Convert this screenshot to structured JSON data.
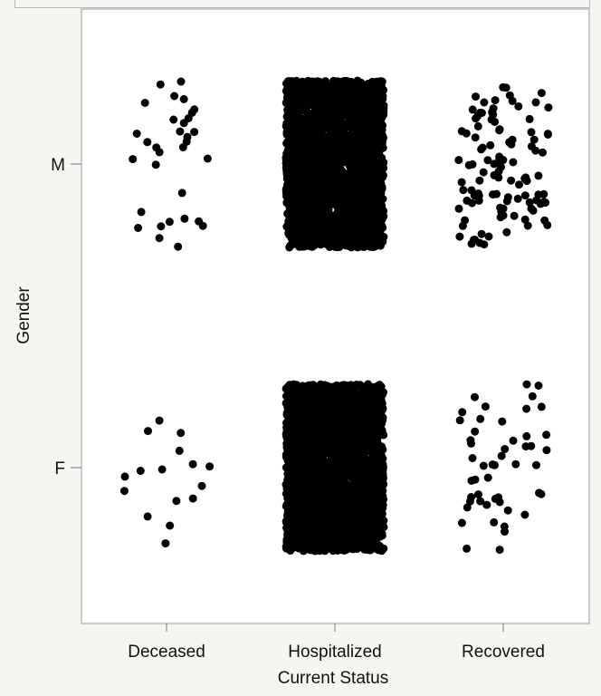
{
  "chart_data": {
    "type": "scatter",
    "title": "",
    "xlabel": "Current Status",
    "ylabel": "Gender",
    "categories": [
      "Deceased",
      "Hospitalized",
      "Recovered"
    ],
    "y_categories": [
      "M",
      "F"
    ],
    "grid": false,
    "legend": "none",
    "point_color": "#000000",
    "groups": [
      {
        "x": "Deceased",
        "y": "M",
        "count": 32
      },
      {
        "x": "Deceased",
        "y": "F",
        "count": 16
      },
      {
        "x": "Hospitalized",
        "y": "M",
        "count": 2400
      },
      {
        "x": "Hospitalized",
        "y": "F",
        "count": 2400
      },
      {
        "x": "Recovered",
        "y": "M",
        "count": 110
      },
      {
        "x": "Recovered",
        "y": "F",
        "count": 50
      }
    ]
  }
}
